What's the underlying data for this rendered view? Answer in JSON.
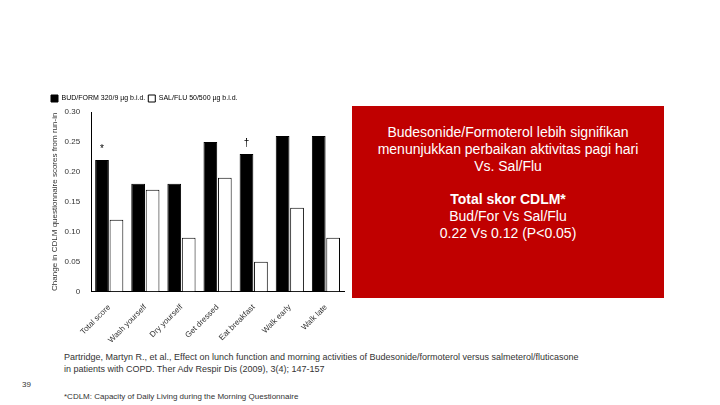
{
  "chart_data": {
    "type": "bar",
    "y_label": "Change in CDLM questionnaire scores from run-in",
    "categories": [
      "Total score",
      "Wash yourself",
      "Dry yourself",
      "Get dressed",
      "Eat breakfast",
      "Walk early",
      "Walk late"
    ],
    "series": [
      {
        "name": "BUD/FORM 320/9 µg b.i.d.",
        "color": "#000000",
        "values": [
          0.22,
          0.18,
          0.18,
          0.25,
          0.23,
          0.26,
          0.26
        ]
      },
      {
        "name": "SAL/FLU 50/500 µg b.i.d.",
        "color": "#ffffff",
        "values": [
          0.12,
          0.17,
          0.09,
          0.19,
          0.05,
          0.14,
          0.09
        ]
      }
    ],
    "ylim": [
      0,
      0.3
    ],
    "yticks": [
      0,
      0.05,
      {
        "value": 0.1,
        "label": "0.10"
      },
      0.15,
      {
        "value": 0.2,
        "label": "0.20"
      },
      0.25,
      {
        "value": 0.3,
        "label": "0.30"
      }
    ],
    "grid": false,
    "legend": "upper left",
    "annotations": [
      {
        "category": "Total score",
        "series": "BUD/FORM 320/9 µg b.i.d.",
        "text": "*"
      },
      {
        "category": "Eat breakfast",
        "series": "BUD/FORM 320/9 µg b.i.d.",
        "text": "†"
      }
    ]
  },
  "callout": {
    "statement": [
      "Budesonide/Formoterol lebih signifikan",
      "menunjukkan perbaikan aktivitas pagi hari",
      "Vs. Sal/Flu"
    ],
    "heading": "Total skor CDLM*",
    "comparison": "Bud/For Vs Sal/Flu",
    "result": "0.22 Vs 0.12 (P<0.05)"
  },
  "citation": "Partridge, Martyn R., et al., Effect on lunch function and morning activities of Budesonide/formoterol versus salmeterol/fluticasone in patients with COPD. Ther Adv Respir Dis (2009), 3(4); 147-157",
  "page_number": "39",
  "footnote": "*CDLM: Capacity of Daily Living during the Morning Questionnaire"
}
